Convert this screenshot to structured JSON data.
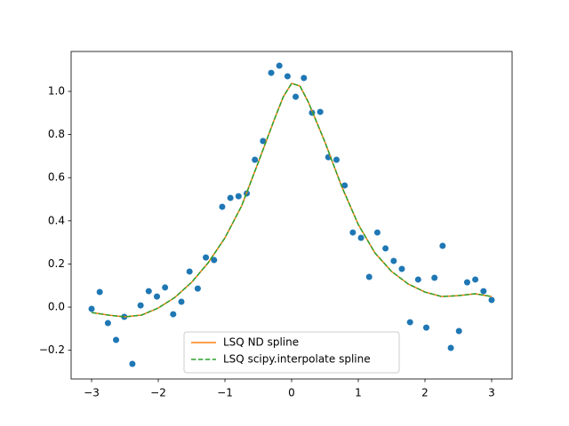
{
  "chart_data": {
    "type": "line",
    "xlim": [
      -3.307,
      3.307
    ],
    "ylim": [
      -0.333,
      1.185
    ],
    "xticks": [
      {
        "value": -3,
        "label": "−3"
      },
      {
        "value": -2,
        "label": "−2"
      },
      {
        "value": -1,
        "label": "−1"
      },
      0,
      1,
      2,
      3
    ],
    "yticks": [
      {
        "value": -0.2,
        "label": "−0.2"
      },
      {
        "value": 0,
        "label": "0.0"
      },
      0.2,
      0.4,
      0.6,
      0.8,
      {
        "value": 1,
        "label": "1.0"
      }
    ],
    "legend": "lower center",
    "series": [
      {
        "type": "scatter",
        "color": "#1f77b4",
        "x": [
          -3,
          -2.878,
          -2.755,
          -2.633,
          -2.51,
          -2.388,
          -2.265,
          -2.143,
          -2.02,
          -1.898,
          -1.776,
          -1.653,
          -1.531,
          -1.408,
          -1.286,
          -1.163,
          -1.041,
          -0.918,
          -0.796,
          -0.673,
          -0.551,
          -0.429,
          -0.306,
          -0.184,
          -0.061,
          0.061,
          0.184,
          0.306,
          0.429,
          0.551,
          0.673,
          0.796,
          0.918,
          1.041,
          1.163,
          1.286,
          1.408,
          1.531,
          1.653,
          1.776,
          1.898,
          2.02,
          2.143,
          2.265,
          2.388,
          2.51,
          2.633,
          2.755,
          2.878,
          3
        ],
        "values": [
          -0.008,
          0.07,
          -0.074,
          -0.152,
          -0.045,
          -0.263,
          0.008,
          0.074,
          0.049,
          0.091,
          -0.033,
          0.025,
          0.165,
          0.086,
          0.23,
          0.218,
          0.465,
          0.506,
          0.514,
          0.527,
          0.683,
          0.77,
          1.086,
          1.119,
          1.07,
          0.975,
          1.062,
          0.901,
          0.905,
          0.695,
          0.683,
          0.564,
          0.346,
          0.321,
          0.14,
          0.346,
          0.272,
          0.214,
          0.177,
          -0.07,
          0.128,
          -0.095,
          0.136,
          0.284,
          -0.189,
          -0.111,
          0.115,
          0.128,
          0.074,
          0.033
        ]
      },
      {
        "type": "line",
        "name": "LSQ ND spline",
        "color": "#ff7f0e",
        "x": [
          -3,
          -2.75,
          -2.5,
          -2.25,
          -2,
          -1.75,
          -1.5,
          -1.25,
          -1,
          -0.75,
          -0.5,
          -0.25,
          -0.125,
          0,
          0.125,
          0.25,
          0.5,
          0.75,
          1,
          1.25,
          1.5,
          1.75,
          2,
          2.25,
          2.5,
          2.75,
          3
        ],
        "values": [
          -0.025,
          -0.037,
          -0.045,
          -0.037,
          -0.004,
          0.045,
          0.115,
          0.206,
          0.321,
          0.469,
          0.671,
          0.877,
          0.975,
          1.037,
          1.025,
          0.951,
          0.765,
          0.56,
          0.383,
          0.251,
          0.165,
          0.107,
          0.07,
          0.049,
          0.053,
          0.062,
          0.049
        ]
      },
      {
        "type": "line",
        "name": "LSQ scipy.interpolate spline",
        "color": "#2ca02c",
        "dashed": true,
        "x": [
          -3,
          -2.75,
          -2.5,
          -2.25,
          -2,
          -1.75,
          -1.5,
          -1.25,
          -1,
          -0.75,
          -0.5,
          -0.25,
          -0.125,
          0,
          0.125,
          0.25,
          0.5,
          0.75,
          1,
          1.25,
          1.5,
          1.75,
          2,
          2.25,
          2.5,
          2.75,
          3
        ],
        "values": [
          -0.025,
          -0.037,
          -0.045,
          -0.037,
          -0.004,
          0.045,
          0.115,
          0.206,
          0.321,
          0.469,
          0.671,
          0.877,
          0.975,
          1.037,
          1.025,
          0.951,
          0.765,
          0.56,
          0.383,
          0.251,
          0.165,
          0.107,
          0.07,
          0.049,
          0.053,
          0.062,
          0.049
        ]
      }
    ]
  }
}
